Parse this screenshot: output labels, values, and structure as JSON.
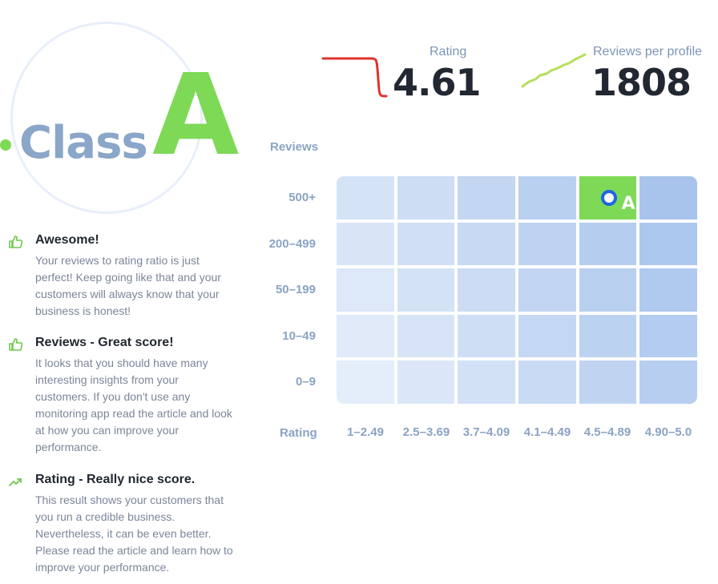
{
  "class_badge": {
    "prefix": "Class",
    "grade": "A"
  },
  "feedback": [
    {
      "icon": "thumbs-up-icon",
      "title": "Awesome!",
      "text": "Your reviews to rating ratio is just perfect! Keep going like that and your customers will always know that your business is honest!"
    },
    {
      "icon": "thumbs-up-icon",
      "title": "Reviews - Great score!",
      "text": "It looks that you should have many interesting insights from your customers. If you don't use any monitoring app read the article and look at how you can improve your performance."
    },
    {
      "icon": "trend-up-icon",
      "title": "Rating - Really nice score.",
      "text": "This result shows your customers that you run a credible business. Nevertheless, it can be even better. Please read the article and learn how to improve your performance."
    }
  ],
  "metrics": {
    "rating": {
      "label": "Rating",
      "value": "4.61",
      "trend": "down",
      "color": "#e0322e"
    },
    "reviews_per_profile": {
      "label": "Reviews per profile",
      "value": "1808",
      "trend": "up",
      "color": "#b5e05a"
    }
  },
  "matrix": {
    "y_title": "Reviews",
    "x_title": "Rating",
    "rows": [
      "500+",
      "200–499",
      "50–199",
      "10–49",
      "0–9"
    ],
    "columns": [
      "1–2.49",
      "2.5–3.69",
      "3.7–4.09",
      "4.1–4.49",
      "4.5–4.89",
      "4.90–5.0"
    ],
    "active": {
      "row": "500+",
      "column": "4.5–4.89",
      "label": "A"
    },
    "colors": {
      "active": "#7ed957",
      "marker": "#1e66e8",
      "cell_light": "#e4edfa",
      "cell_dark": "#b4cbee"
    }
  }
}
